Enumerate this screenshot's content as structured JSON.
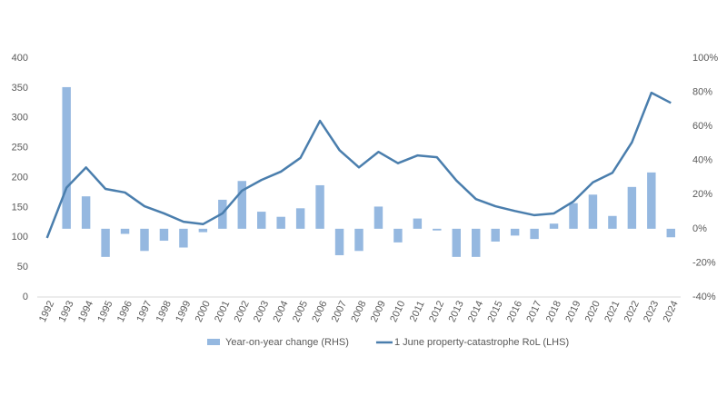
{
  "chart_data": {
    "type": "bar-line",
    "categories": [
      "1992",
      "1993",
      "1994",
      "1995",
      "1996",
      "1997",
      "1998",
      "1999",
      "2000",
      "2001",
      "2002",
      "2003",
      "2004",
      "2005",
      "2006",
      "2007",
      "2008",
      "2009",
      "2010",
      "2011",
      "2012",
      "2013",
      "2014",
      "2015",
      "2016",
      "2017",
      "2018",
      "2019",
      "2020",
      "2021",
      "2022",
      "2023",
      "2024"
    ],
    "series": [
      {
        "name": "Year-on-year change (RHS)",
        "type": "bar",
        "axis": "y2",
        "color": "#95b8e0",
        "values": [
          null,
          83,
          19,
          -16.5,
          -3,
          -13,
          -7,
          -11,
          -2,
          17,
          28,
          10,
          7,
          12,
          25.5,
          -15.5,
          -13,
          13,
          -8,
          6,
          -1,
          -16.5,
          -16.5,
          -7.5,
          -4,
          -6,
          3,
          15,
          20,
          7.5,
          24.5,
          33,
          -5
        ]
      },
      {
        "name": "1 June property-catastrophe RoL (LHS)",
        "type": "line",
        "color": "#4a7ead",
        "values": [
          99,
          183,
          217,
          181,
          175,
          152,
          140,
          126,
          122,
          140,
          178,
          196,
          210,
          233,
          295,
          246,
          217,
          243,
          224,
          237,
          234,
          195,
          164,
          152,
          144,
          137,
          140,
          160,
          192,
          208,
          259,
          342,
          325
        ]
      }
    ],
    "ylim": [
      0,
      400
    ],
    "yticks": [
      0,
      50,
      100,
      150,
      200,
      250,
      300,
      350,
      400
    ],
    "y2lim": [
      -40,
      100
    ],
    "y2ticks": [
      {
        "value": -40,
        "label": "-40%"
      },
      {
        "value": -20,
        "label": "-20%"
      },
      {
        "value": 0,
        "label": "0%"
      },
      {
        "value": 20,
        "label": "20%"
      },
      {
        "value": 40,
        "label": "40%"
      },
      {
        "value": 60,
        "label": "60%"
      },
      {
        "value": 80,
        "label": "80%"
      },
      {
        "value": 100,
        "label": "100%"
      }
    ]
  }
}
